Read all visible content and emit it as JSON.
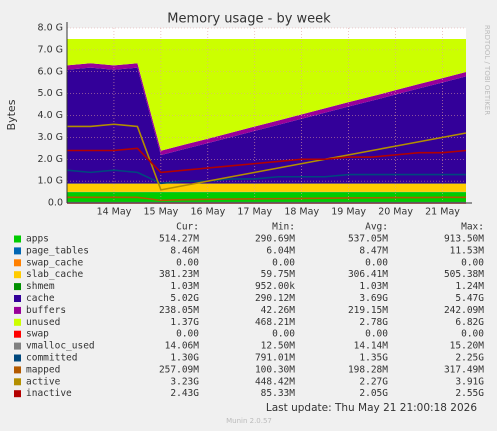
{
  "chart_data": {
    "type": "stacked_area",
    "title": "Memory usage - by week",
    "y_label": "Bytes",
    "side_text": "RRDTOOL / TOBI OETIKER",
    "categories": [
      null,
      null,
      "14 May",
      null,
      "15 May",
      null,
      "16 May",
      null,
      "17 May",
      null,
      "18 May",
      null,
      "19 May",
      null,
      "20 May",
      null,
      "21 May",
      null
    ],
    "ylim": [
      0,
      8000000000.0
    ],
    "yticks": [
      {
        "value": 0,
        "label": "0.0"
      },
      {
        "value": 1000000000.0,
        "label": "1.0 G"
      },
      {
        "value": 2000000000.0,
        "label": "2.0 G"
      },
      {
        "value": 3000000000.0,
        "label": "3.0 G"
      },
      {
        "value": 4000000000.0,
        "label": "4.0 G"
      },
      {
        "value": 5000000000.0,
        "label": "5.0 G"
      },
      {
        "value": 6000000000.0,
        "label": "6.0 G"
      },
      {
        "value": 7000000000.0,
        "label": "7.0 G"
      },
      {
        "value": 8000000000.0,
        "label": "8.0 G"
      }
    ],
    "grid": true,
    "stat_headers": [
      "Cur:",
      "Min:",
      "Avg:",
      "Max:"
    ],
    "series": [
      {
        "name": "apps",
        "color": "#00cc00",
        "stack": true,
        "stats": [
          "514.27M",
          "290.69M",
          "537.05M",
          "913.50M"
        ],
        "values": [
          500000000.0,
          500000000.0,
          500000000.0,
          500000000.0,
          500000000.0,
          500000000.0,
          500000000.0,
          500000000.0,
          500000000.0,
          500000000.0,
          500000000.0,
          500000000.0,
          500000000.0,
          500000000.0,
          500000000.0,
          500000000.0,
          500000000.0,
          500000000.0
        ]
      },
      {
        "name": "page_tables",
        "color": "#0066b3",
        "stack": true,
        "stats": [
          "8.46M",
          "6.04M",
          "8.47M",
          "11.53M"
        ],
        "values": [
          8000000.0,
          8000000.0,
          8000000.0,
          8000000.0,
          8000000.0,
          8000000.0,
          8000000.0,
          8000000.0,
          8000000.0,
          8000000.0,
          8000000.0,
          8000000.0,
          8000000.0,
          8000000.0,
          8000000.0,
          8000000.0,
          8000000.0,
          8000000.0
        ]
      },
      {
        "name": "swap_cache",
        "color": "#ff8000",
        "stack": true,
        "stats": [
          "0.00",
          "0.00",
          "0.00",
          "0.00"
        ],
        "values": [
          0,
          0,
          0,
          0,
          0,
          0,
          0,
          0,
          0,
          0,
          0,
          0,
          0,
          0,
          0,
          0,
          0,
          0
        ]
      },
      {
        "name": "slab_cache",
        "color": "#ffcc00",
        "stack": true,
        "stats": [
          "381.23M",
          "59.75M",
          "306.41M",
          "505.38M"
        ],
        "values": [
          380000000.0,
          380000000.0,
          380000000.0,
          380000000.0,
          380000000.0,
          380000000.0,
          380000000.0,
          380000000.0,
          380000000.0,
          380000000.0,
          380000000.0,
          380000000.0,
          380000000.0,
          380000000.0,
          380000000.0,
          380000000.0,
          380000000.0,
          380000000.0
        ]
      },
      {
        "name": "shmem",
        "color": "#008f00",
        "stack": true,
        "stats": [
          "1.03M",
          "952.00k",
          "1.03M",
          "1.24M"
        ],
        "values": [
          1000000.0,
          1000000.0,
          1000000.0,
          1000000.0,
          1000000.0,
          1000000.0,
          1000000.0,
          1000000.0,
          1000000.0,
          1000000.0,
          1000000.0,
          1000000.0,
          1000000.0,
          1000000.0,
          1000000.0,
          1000000.0,
          1000000.0,
          1000000.0
        ]
      },
      {
        "name": "cache",
        "color": "#330099",
        "stack": true,
        "stats": [
          "5.02G",
          "290.12M",
          "3.69G",
          "5.47G"
        ],
        "values": [
          5200000000.0,
          5300000000.0,
          5200000000.0,
          5300000000.0,
          1300000000.0,
          1580000000.0,
          1850000000.0,
          2130000000.0,
          2410000000.0,
          2680000000.0,
          2960000000.0,
          3240000000.0,
          3520000000.0,
          3790000000.0,
          4070000000.0,
          4350000000.0,
          4620000000.0,
          4900000000.0
        ]
      },
      {
        "name": "buffers",
        "color": "#990099",
        "stack": true,
        "stats": [
          "238.05M",
          "42.26M",
          "219.15M",
          "242.09M"
        ],
        "values": [
          200000000.0,
          200000000.0,
          200000000.0,
          200000000.0,
          200000000.0,
          200000000.0,
          200000000.0,
          200000000.0,
          200000000.0,
          200000000.0,
          200000000.0,
          200000000.0,
          200000000.0,
          200000000.0,
          200000000.0,
          200000000.0,
          200000000.0,
          200000000.0
        ]
      },
      {
        "name": "unused",
        "color": "#ccff00",
        "stack": true,
        "stats": [
          "1.37G",
          "468.21M",
          "2.78G",
          "6.82G"
        ],
        "values": [
          1210000000.0,
          1110000000.0,
          1210000000.0,
          1110000000.0,
          5110000000.0,
          4830000000.0,
          4560000000.0,
          4280000000.0,
          4000000000.0,
          3730000000.0,
          3450000000.0,
          3170000000.0,
          2890000000.0,
          2620000000.0,
          2340000000.0,
          2060000000.0,
          1790000000.0,
          1510000000.0
        ]
      },
      {
        "name": "swap",
        "color": "#ff0000",
        "stack": false,
        "stats": [
          "0.00",
          "0.00",
          "0.00",
          "0.00"
        ],
        "values": [
          0,
          0,
          0,
          0,
          0,
          0,
          0,
          0,
          0,
          0,
          0,
          0,
          0,
          0,
          0,
          0,
          0,
          0
        ]
      },
      {
        "name": "vmalloc_used",
        "color": "#808080",
        "stack": false,
        "stats": [
          "14.06M",
          "12.50M",
          "14.14M",
          "15.20M"
        ],
        "values": [
          14000000.0,
          14000000.0,
          14000000.0,
          14000000.0,
          14000000.0,
          14000000.0,
          14000000.0,
          14000000.0,
          14000000.0,
          14000000.0,
          14000000.0,
          14000000.0,
          14000000.0,
          14000000.0,
          14000000.0,
          14000000.0,
          14000000.0,
          14000000.0
        ]
      },
      {
        "name": "committed",
        "color": "#00487d",
        "stack": false,
        "stats": [
          "1.30G",
          "791.01M",
          "1.35G",
          "2.25G"
        ],
        "values": [
          1500000000.0,
          1400000000.0,
          1500000000.0,
          1400000000.0,
          900000000.0,
          1000000000.0,
          1000000000.0,
          1100000000.0,
          1100000000.0,
          1200000000.0,
          1200000000.0,
          1200000000.0,
          1300000000.0,
          1300000000.0,
          1300000000.0,
          1300000000.0,
          1300000000.0,
          1300000000.0
        ]
      },
      {
        "name": "mapped",
        "color": "#b35a00",
        "stack": false,
        "stats": [
          "257.09M",
          "100.30M",
          "198.28M",
          "317.49M"
        ],
        "values": [
          260000000.0,
          260000000.0,
          260000000.0,
          260000000.0,
          120000000.0,
          150000000.0,
          170000000.0,
          180000000.0,
          190000000.0,
          200000000.0,
          210000000.0,
          220000000.0,
          230000000.0,
          240000000.0,
          250000000.0,
          250000000.0,
          260000000.0,
          260000000.0
        ]
      },
      {
        "name": "active",
        "color": "#b38f00",
        "stack": false,
        "stats": [
          "3.23G",
          "448.42M",
          "2.27G",
          "3.91G"
        ],
        "values": [
          3500000000.0,
          3500000000.0,
          3600000000.0,
          3500000000.0,
          600000000.0,
          800000000.0,
          1000000000.0,
          1200000000.0,
          1400000000.0,
          1600000000.0,
          1800000000.0,
          2000000000.0,
          2200000000.0,
          2400000000.0,
          2600000000.0,
          2800000000.0,
          3000000000.0,
          3200000000.0
        ]
      },
      {
        "name": "inactive",
        "color": "#b30000",
        "stack": false,
        "stats": [
          "2.43G",
          "85.33M",
          "2.05G",
          "2.55G"
        ],
        "values": [
          2400000000.0,
          2400000000.0,
          2400000000.0,
          2500000000.0,
          1400000000.0,
          1500000000.0,
          1600000000.0,
          1700000000.0,
          1800000000.0,
          1900000000.0,
          2000000000.0,
          2000000000.0,
          2100000000.0,
          2100000000.0,
          2200000000.0,
          2300000000.0,
          2300000000.0,
          2400000000.0
        ]
      }
    ]
  },
  "footer": {
    "last_update": "Last update: Thu May 21 21:00:18 2026",
    "version": "Munin 2.0.57"
  }
}
